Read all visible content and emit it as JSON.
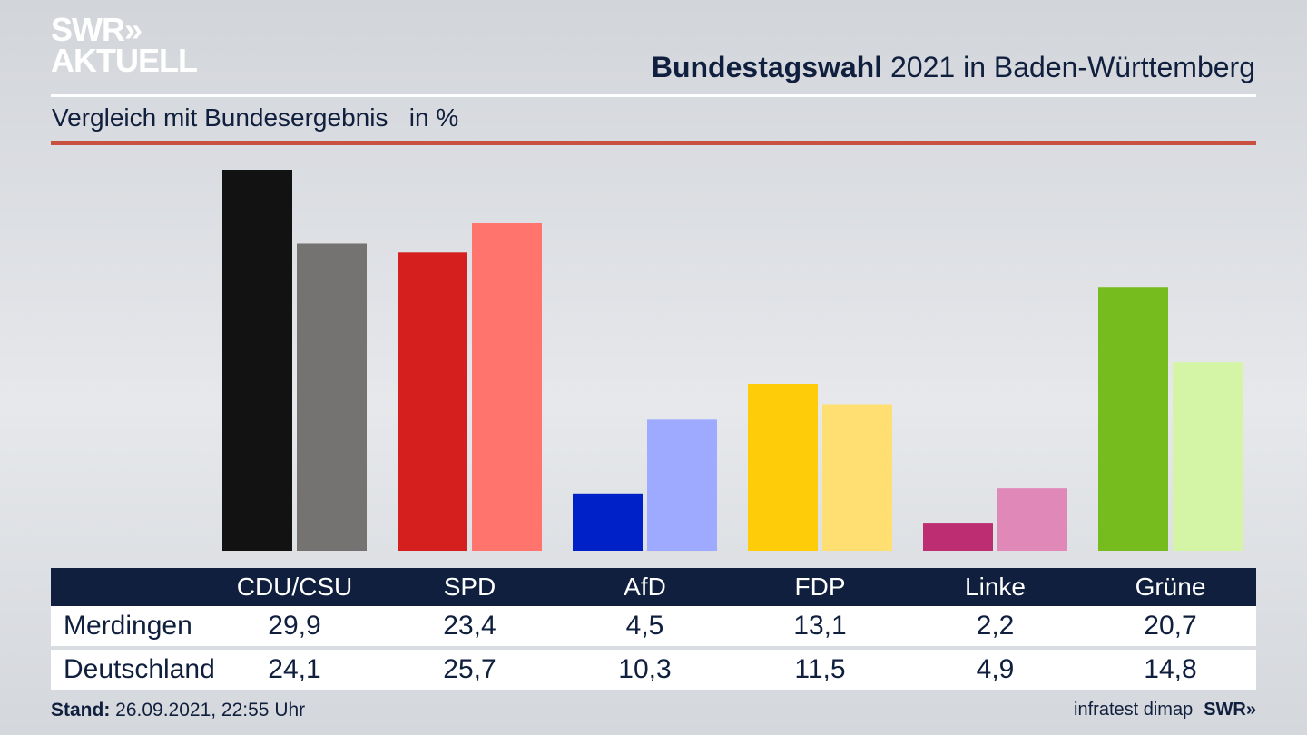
{
  "branding": {
    "logo_line1": "SWR»",
    "logo_line2": "AKTUELL",
    "footer_brand": "SWR»",
    "source": "infratest dimap"
  },
  "header": {
    "title_bold": "Bundestagswahl",
    "title_rest": " 2021 in Baden-Württemberg",
    "subtitle": "Vergleich mit Bundesergebnis   in %"
  },
  "footer": {
    "stand_label": "Stand:",
    "stand_value": " 26.09.2021, 22:55 Uhr"
  },
  "chart_data": {
    "type": "bar",
    "title": "Bundestagswahl 2021 in Baden-Württemberg",
    "subtitle": "Vergleich mit Bundesergebnis in %",
    "xlabel": "",
    "ylabel": "in %",
    "ylim": [
      0,
      29.9
    ],
    "grid": false,
    "categories": [
      "CDU/CSU",
      "SPD",
      "AfD",
      "FDP",
      "Linke",
      "Grüne"
    ],
    "series": [
      {
        "name": "Merdingen",
        "values": [
          29.9,
          23.4,
          4.5,
          13.1,
          2.2,
          20.7
        ],
        "labels": [
          "29,9",
          "23,4",
          "4,5",
          "13,1",
          "2,2",
          "20,7"
        ]
      },
      {
        "name": "Deutschland",
        "values": [
          24.1,
          25.7,
          10.3,
          11.5,
          4.9,
          14.8
        ],
        "labels": [
          "24,1",
          "25,7",
          "10,3",
          "11,5",
          "4,9",
          "14,8"
        ]
      }
    ],
    "colors": {
      "Merdingen": [
        "#121212",
        "#d51f1f",
        "#0020c8",
        "#ffcc0a",
        "#bd2d72",
        "#76bc1e"
      ],
      "Deutschland": [
        "#747371",
        "#ff746d",
        "#9eaaff",
        "#ffdf72",
        "#e088b8",
        "#d4f5a5"
      ]
    }
  }
}
